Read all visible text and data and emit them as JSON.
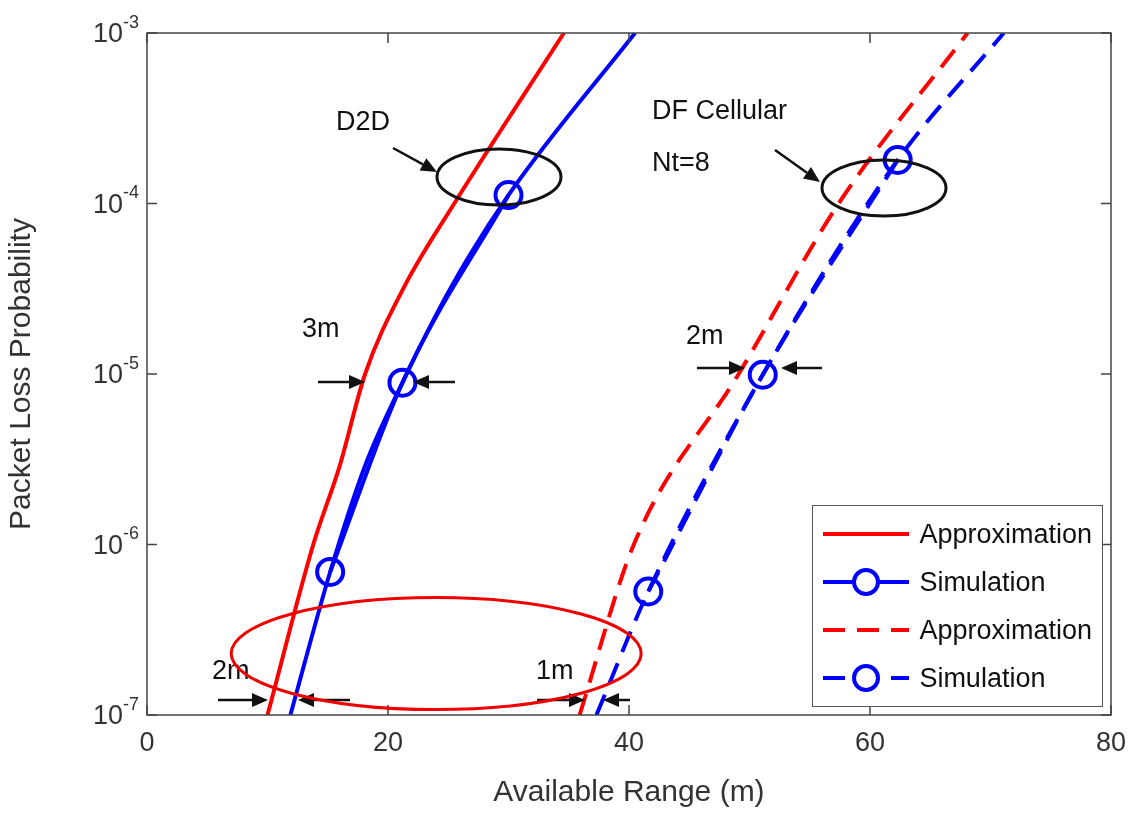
{
  "chart_data": {
    "type": "line",
    "xlabel": "Available Range (m)",
    "ylabel": "Packet Loss Probability",
    "xlim": [
      0,
      80
    ],
    "xticks": [
      0,
      20,
      40,
      60,
      80
    ],
    "ylim": [
      1e-07,
      0.001
    ],
    "yticks": [
      {
        "value": 1e-07,
        "label": "10$^{-7}$"
      },
      {
        "value": 1e-06,
        "label": "10$^{-6}$"
      },
      {
        "value": 1e-05,
        "label": "10$^{-5}$"
      },
      {
        "value": 0.0001,
        "label": "10$^{-4}$"
      },
      {
        "value": 0.001,
        "label": "10$^{-3}$"
      }
    ],
    "log": "y",
    "grid": false,
    "legend": "bottom right",
    "series": [
      {
        "name": "Approximation",
        "color": "#ff0000",
        "line_style": "solid",
        "marker": "none",
        "x": [
          10,
          13.8,
          16.0,
          18.1,
          21.3,
          25.5,
          34.6
        ],
        "values": [
          1e-07,
          1e-06,
          2.9e-06,
          1e-05,
          3.2e-05,
          0.0001,
          0.001
        ]
      },
      {
        "name": "Simulation",
        "color": "#0000ff",
        "line_style": "solid",
        "marker": "circle",
        "x": [
          15.2,
          21.2,
          30.0
        ],
        "values": [
          6.9e-07,
          8.9e-06,
          0.000112
        ]
      },
      {
        "color": "#0000ff",
        "line_style": "solid",
        "marker": "none",
        "x": [
          11.9,
          15.2,
          18.1,
          21.2,
          25.2,
          30.0,
          40.5
        ],
        "values": [
          1e-07,
          6.9e-07,
          2.9e-06,
          8.9e-06,
          3.2e-05,
          0.000112,
          0.001
        ]
      },
      {
        "name": "Approximation",
        "color": "#ff0000",
        "line_style": "dashed",
        "marker": "none",
        "x": [
          35.9,
          40.4,
          49.1,
          57.4,
          68.1
        ],
        "values": [
          1e-07,
          1e-06,
          1e-05,
          0.0001,
          0.001
        ]
      },
      {
        "name": "Simulation",
        "color": "#0000ff",
        "line_style": "dashed",
        "marker": "circle",
        "x": [
          41.6,
          51.1,
          62.3
        ],
        "values": [
          5.3e-07,
          9.9e-06,
          0.00018
        ]
      },
      {
        "color": "#0000ff",
        "line_style": "dashed",
        "marker": "none",
        "x": [
          37.3,
          41.6,
          51.1,
          62.3,
          71.1
        ],
        "values": [
          1e-07,
          5.3e-07,
          9.9e-06,
          0.00018,
          0.001
        ]
      }
    ],
    "annotations": [
      "D2D",
      "DF Cellular\nNt=8",
      "3m",
      "2m",
      "2m",
      "1m"
    ]
  }
}
